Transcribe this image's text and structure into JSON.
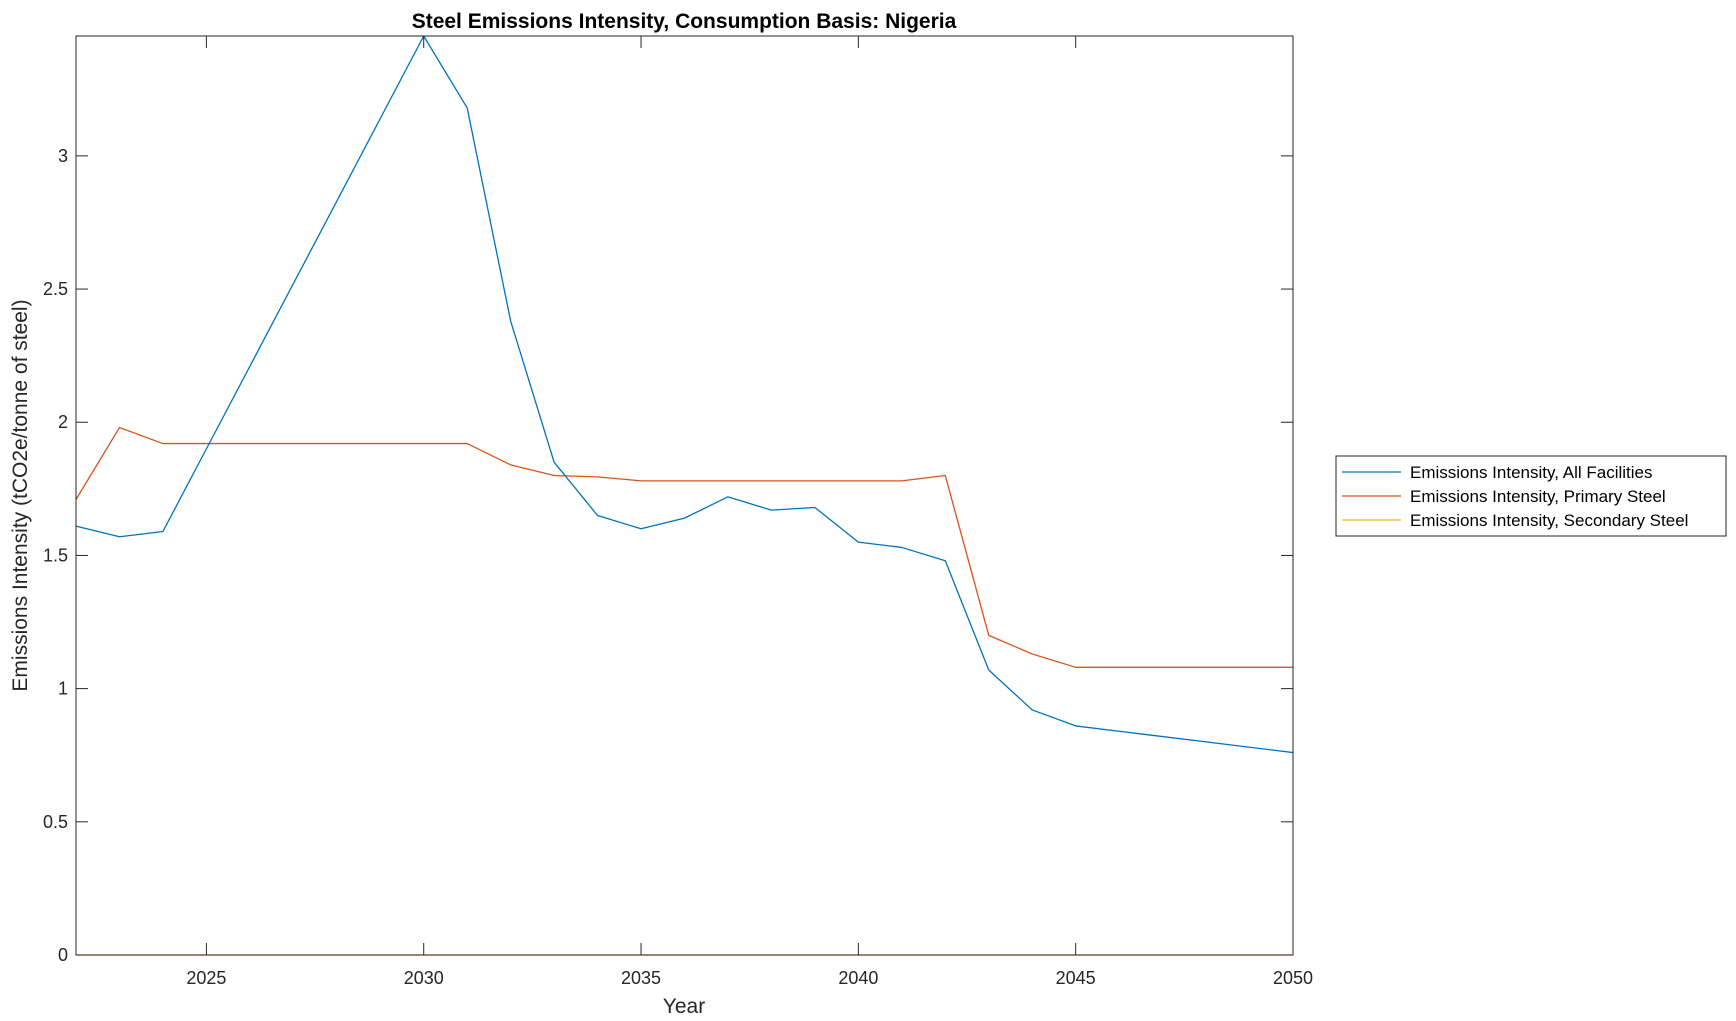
{
  "chart_data": {
    "type": "line",
    "title": "Steel Emissions Intensity, Consumption Basis: Nigeria",
    "xlabel": "Year",
    "ylabel": "Emissions Intensity (tCO2e/tonne of steel)",
    "xlim": [
      2022,
      2050
    ],
    "ylim": [
      0,
      3.45
    ],
    "xticks": [
      2025,
      2030,
      2035,
      2040,
      2045,
      2050
    ],
    "xtick_labels": [
      "2025",
      "2030",
      "2035",
      "2040",
      "2045",
      "2050"
    ],
    "yticks": [
      0,
      0.5,
      1,
      1.5,
      2,
      2.5,
      3
    ],
    "ytick_labels": [
      "0",
      "0.5",
      "1",
      "1.5",
      "2",
      "2.5",
      "3"
    ],
    "grid": false,
    "legend_position": "outside-right",
    "x": [
      2022,
      2023,
      2024,
      2025,
      2026,
      2027,
      2028,
      2029,
      2030,
      2031,
      2032,
      2033,
      2034,
      2035,
      2036,
      2037,
      2038,
      2039,
      2040,
      2041,
      2042,
      2043,
      2044,
      2045,
      2046,
      2047,
      2048,
      2049,
      2050
    ],
    "series": [
      {
        "name": "Emissions Intensity, All Facilities",
        "color": "#0072BD",
        "values": [
          1.61,
          1.57,
          1.59,
          1.9,
          2.21,
          2.52,
          2.83,
          3.14,
          3.45,
          3.18,
          2.38,
          1.85,
          1.65,
          1.6,
          1.64,
          1.72,
          1.67,
          1.68,
          1.55,
          1.53,
          1.48,
          1.07,
          0.92,
          0.86,
          0.84,
          0.82,
          0.8,
          0.78,
          0.76
        ]
      },
      {
        "name": "Emissions Intensity, Primary Steel",
        "color": "#D95319",
        "values": [
          1.71,
          1.98,
          1.92,
          1.92,
          1.92,
          1.92,
          1.92,
          1.92,
          1.92,
          1.92,
          1.84,
          1.8,
          1.795,
          1.78,
          1.78,
          1.78,
          1.78,
          1.78,
          1.78,
          1.78,
          1.8,
          1.2,
          1.13,
          1.08,
          1.08,
          1.08,
          1.08,
          1.08,
          1.08
        ]
      },
      {
        "name": "Emissions Intensity, Secondary Steel",
        "color": "#EDB120",
        "values": [
          0,
          0,
          0,
          0,
          0,
          0,
          0,
          0,
          0,
          0,
          0,
          0,
          0,
          0,
          0,
          0,
          0,
          0,
          0,
          0,
          0,
          0,
          0,
          0,
          0,
          0,
          0,
          0,
          0
        ]
      }
    ]
  }
}
